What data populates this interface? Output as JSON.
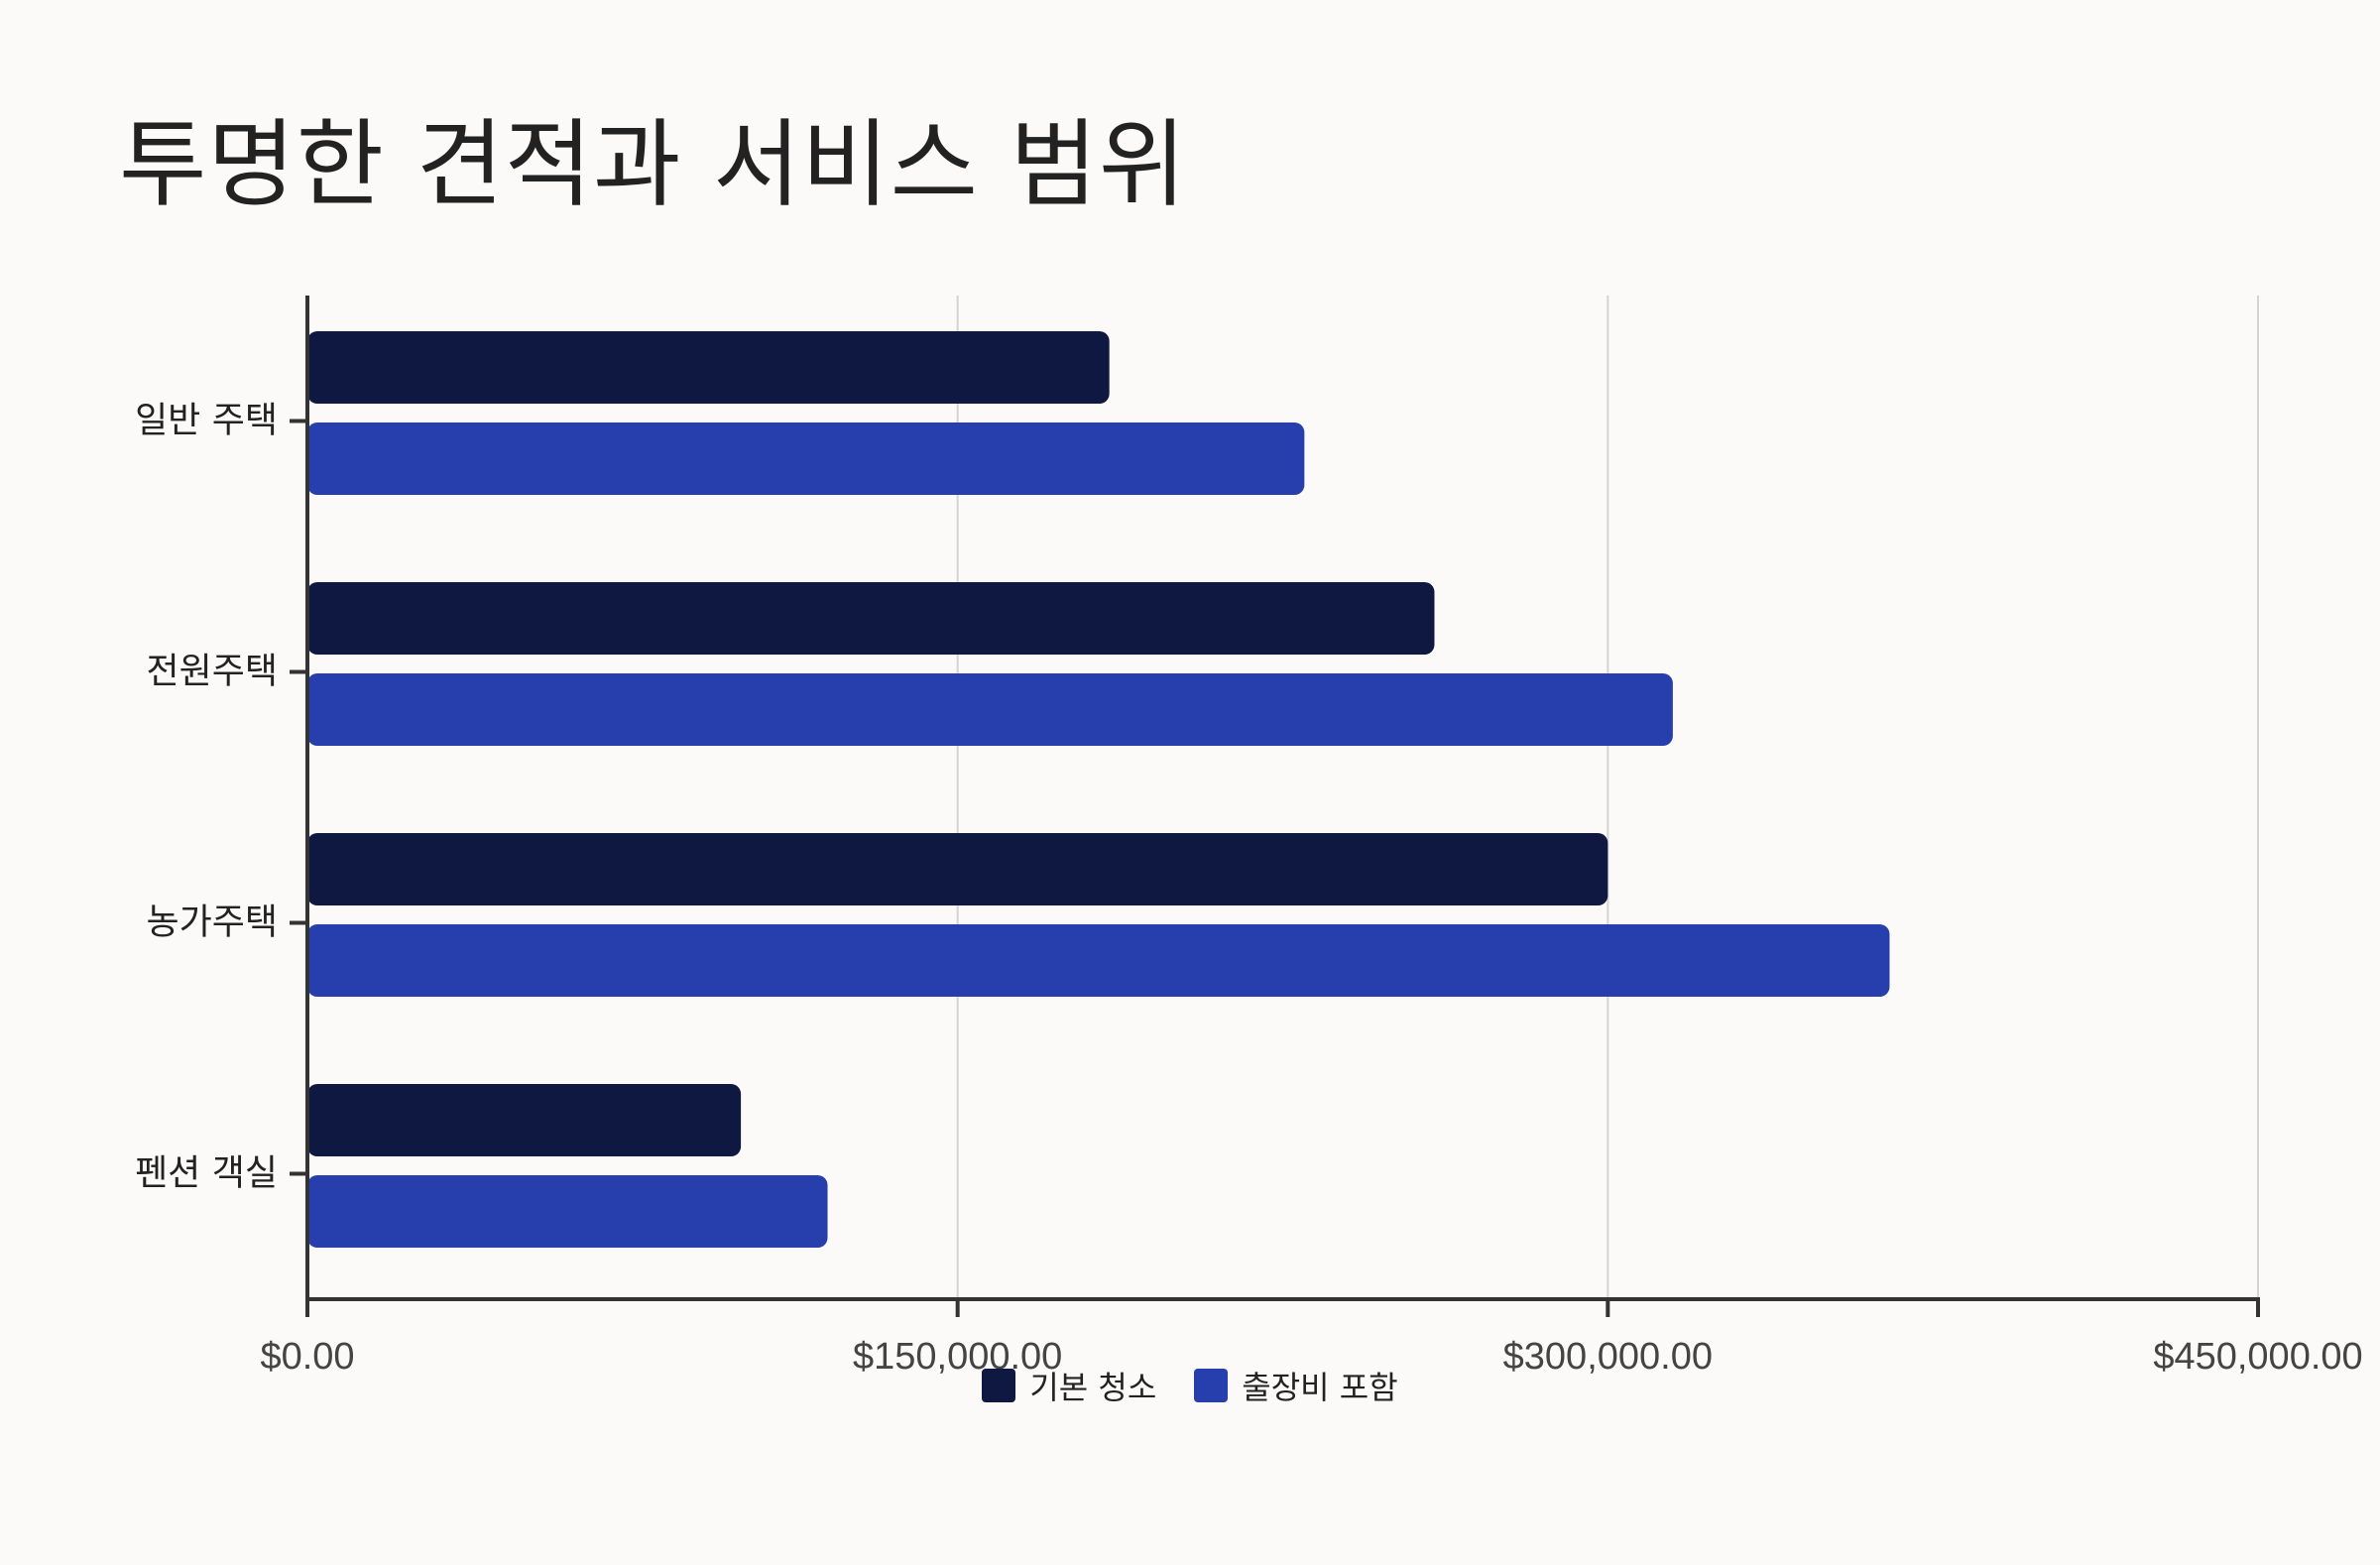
{
  "chart_data": {
    "type": "bar",
    "orientation": "horizontal",
    "title": "투명한 견적과 서비스 범위",
    "categories": [
      "일반 주택",
      "전원주택",
      "농가주택",
      "펜션 객실"
    ],
    "series": [
      {
        "name": "기본 청소",
        "color": "#0f1841",
        "values": [
          185000,
          260000,
          300000,
          100000
        ]
      },
      {
        "name": "출장비 포함",
        "color": "#263fad",
        "values": [
          230000,
          315000,
          365000,
          120000
        ]
      }
    ],
    "xlim": [
      0,
      450000
    ],
    "xticks": [
      0,
      150000,
      300000,
      450000
    ],
    "xtick_labels": [
      "$0.00",
      "$150,000.00",
      "$300,000.00",
      "$450,000.00"
    ],
    "grid": "vertical",
    "legend_position": "bottom"
  }
}
